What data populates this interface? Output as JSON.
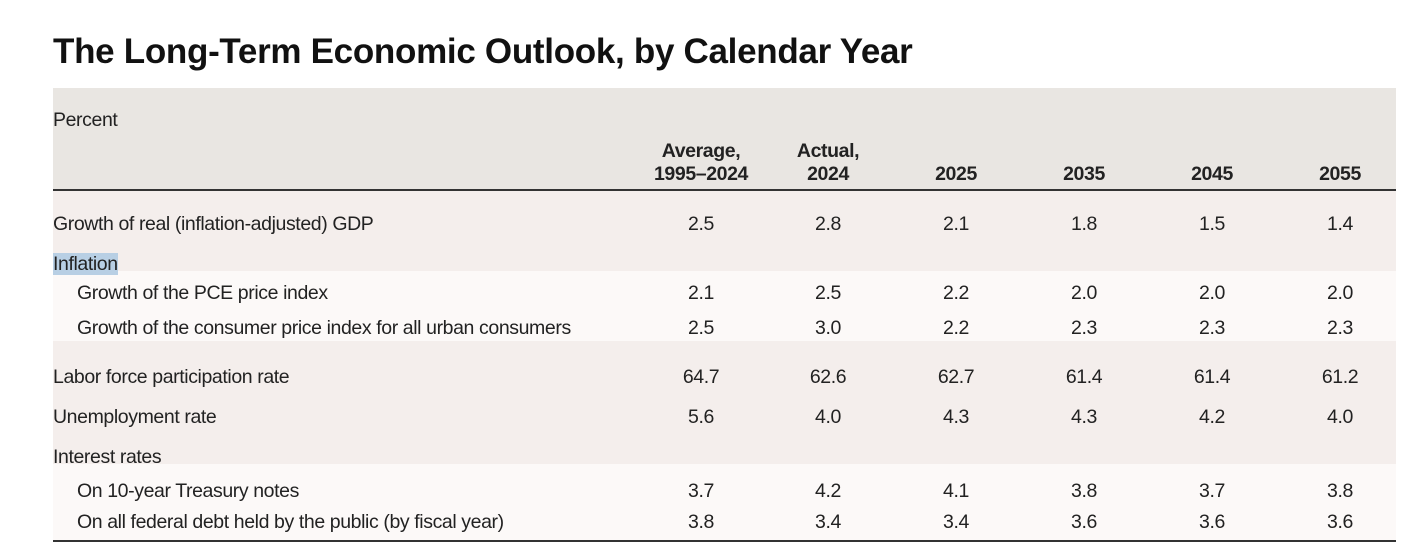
{
  "title": "The Long-Term Economic Outlook, by Calendar Year",
  "table": {
    "unit": "Percent",
    "columns": [
      [
        "Average,",
        "1995–2024"
      ],
      [
        "Actual,",
        "2024"
      ],
      [
        "2025"
      ],
      [
        "2035"
      ],
      [
        "2045"
      ],
      [
        "2055"
      ]
    ],
    "rows": [
      {
        "label": "Growth of real (inflation-adjusted) GDP",
        "values": [
          "2.5",
          "2.8",
          "2.1",
          "1.8",
          "1.5",
          "1.4"
        ]
      },
      {
        "label": "Inflation"
      },
      {
        "label": "Growth of the PCE price index",
        "values": [
          "2.1",
          "2.5",
          "2.2",
          "2.0",
          "2.0",
          "2.0"
        ]
      },
      {
        "label": "Growth of the consumer price index for all urban consumers",
        "values": [
          "2.5",
          "3.0",
          "2.2",
          "2.3",
          "2.3",
          "2.3"
        ]
      },
      {
        "label": "Labor force participation rate",
        "values": [
          "64.7",
          "62.6",
          "62.7",
          "61.4",
          "61.4",
          "61.2"
        ]
      },
      {
        "label": "Unemployment rate",
        "values": [
          "5.6",
          "4.0",
          "4.3",
          "4.3",
          "4.2",
          "4.0"
        ]
      },
      {
        "label": "Interest rates"
      },
      {
        "label": "On 10-year Treasury notes",
        "values": [
          "3.7",
          "4.2",
          "4.1",
          "3.8",
          "3.7",
          "3.8"
        ]
      },
      {
        "label": "On all federal debt held by the public (by fiscal year)",
        "values": [
          "3.8",
          "3.4",
          "3.4",
          "3.6",
          "3.6",
          "3.6"
        ]
      }
    ]
  }
}
